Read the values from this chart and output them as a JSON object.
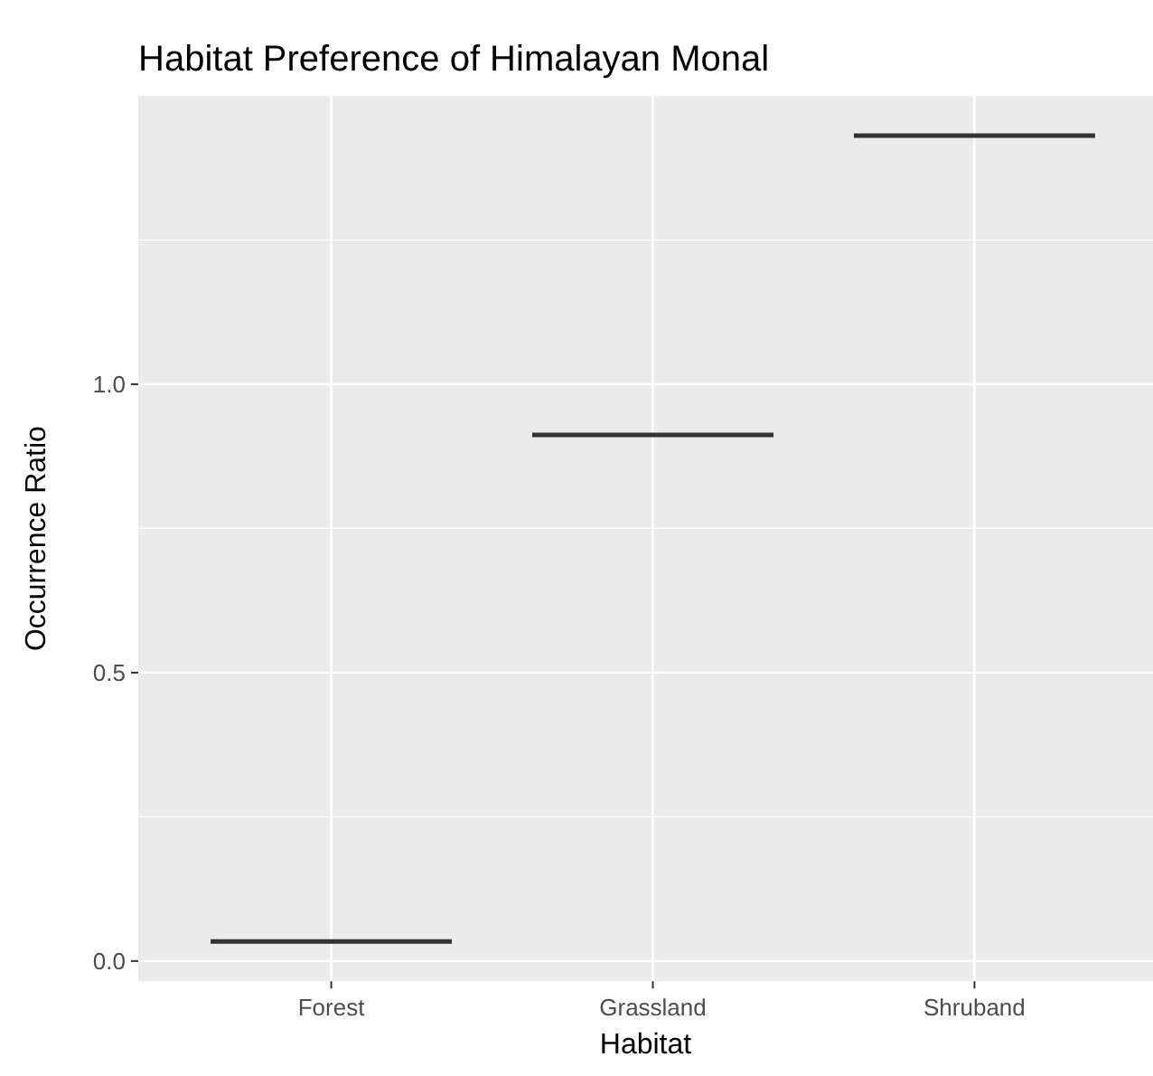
{
  "chart_data": {
    "type": "box",
    "title": "Habitat Preference of Himalayan Monal",
    "xlabel": "Habitat",
    "ylabel": "Occurrence Ratio",
    "categories": [
      "Forest",
      "Grassland",
      "Shruband"
    ],
    "boxes": [
      {
        "low": 0.034,
        "q1": 0.034,
        "median": 0.034,
        "q3": 0.034,
        "high": 0.034
      },
      {
        "low": 0.912,
        "q1": 0.912,
        "median": 0.912,
        "q3": 0.912,
        "high": 0.912
      },
      {
        "low": 1.431,
        "q1": 1.431,
        "median": 1.431,
        "q3": 1.431,
        "high": 1.431
      }
    ],
    "color": "#333333",
    "ylim": [
      -0.035,
      1.5
    ],
    "yticks": [
      {
        "value": 0,
        "label": "0.0"
      },
      {
        "value": 0.5,
        "label": "0.5"
      },
      {
        "value": 1,
        "label": "1.0"
      }
    ],
    "grid": true
  }
}
